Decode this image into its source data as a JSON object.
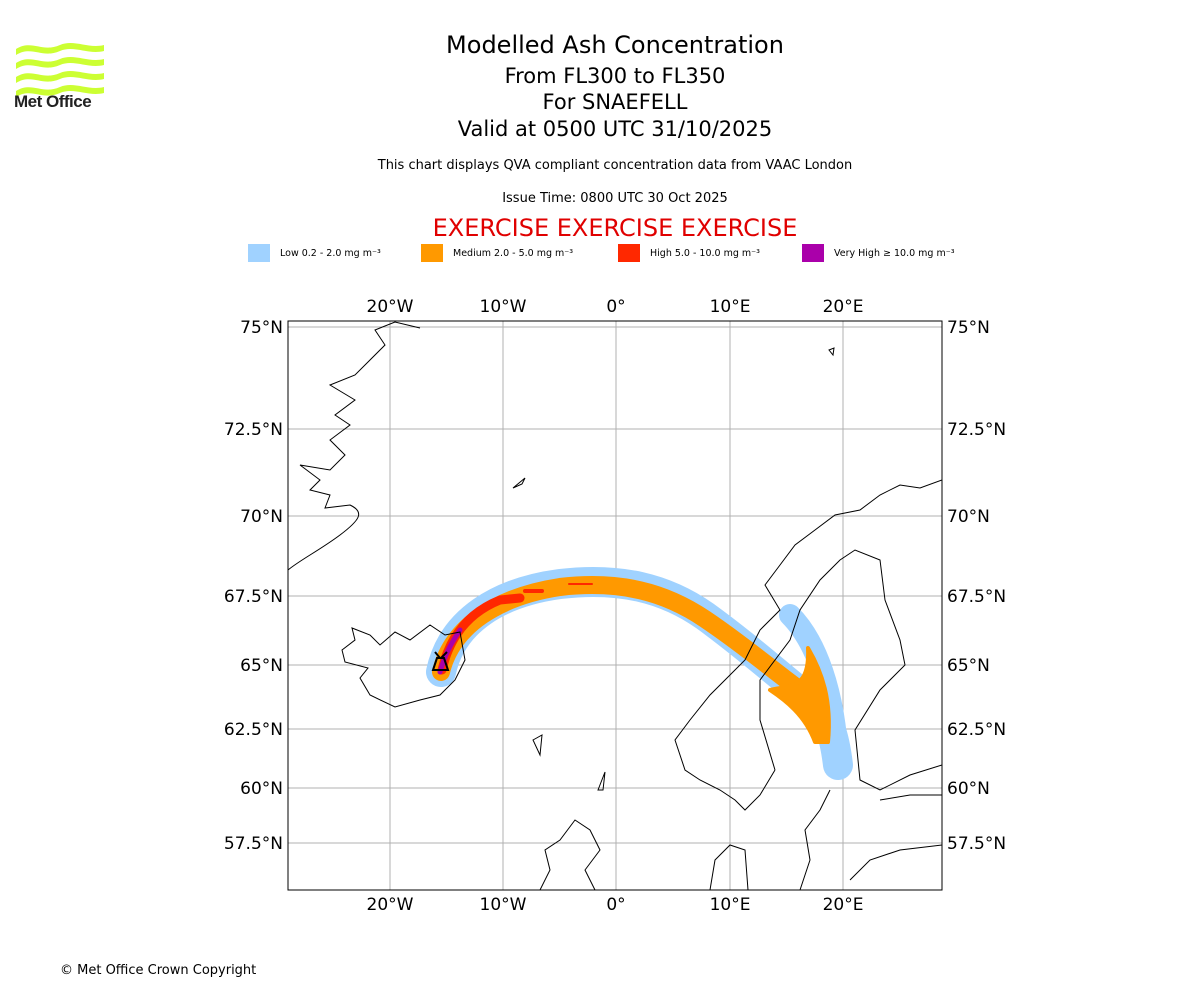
{
  "logo": {
    "text": "Met Office",
    "brand_color": "#ccff33"
  },
  "header": {
    "title": "Modelled Ash Concentration",
    "levels": "From FL300 to FL350",
    "volcano": "For SNAEFELL",
    "valid": "Valid at 0500 UTC 31/10/2025",
    "note": "This chart displays QVA compliant concentration data from VAAC London",
    "issue": "Issue Time: 0800 UTC 30 Oct 2025",
    "exercise": "EXERCISE EXERCISE EXERCISE"
  },
  "legend": [
    {
      "label": "Low 0.2 - 2.0 mg m⁻³",
      "color": "#a0d2ff"
    },
    {
      "label": "Medium 2.0 - 5.0 mg m⁻³",
      "color": "#ff9900"
    },
    {
      "label": "High 5.0 - 10.0 mg m⁻³",
      "color": "#ff2800"
    },
    {
      "label": "Very High ≥ 10.0 mg m⁻³",
      "color": "#aa00aa"
    }
  ],
  "map": {
    "lon_labels": [
      "20°W",
      "10°W",
      "0°",
      "10°E",
      "20°E"
    ],
    "lat_labels": [
      "75°N",
      "72.5°N",
      "70°N",
      "67.5°N",
      "65°N",
      "62.5°N",
      "60°N",
      "57.5°N"
    ],
    "volcano_marker": "SNAEFELL"
  },
  "footer": {
    "copyright": "© Met Office Crown Copyright"
  }
}
